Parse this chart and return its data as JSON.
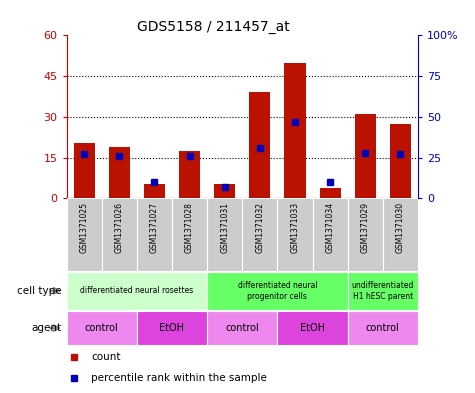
{
  "title": "GDS5158 / 211457_at",
  "samples": [
    "GSM1371025",
    "GSM1371026",
    "GSM1371027",
    "GSM1371028",
    "GSM1371031",
    "GSM1371032",
    "GSM1371033",
    "GSM1371034",
    "GSM1371029",
    "GSM1371030"
  ],
  "counts": [
    20.5,
    19.0,
    5.5,
    17.5,
    5.5,
    39.0,
    50.0,
    4.0,
    31.0,
    27.5
  ],
  "percentile": [
    27,
    26,
    10,
    26,
    7,
    31,
    47,
    10,
    28,
    27
  ],
  "ylim_left": [
    0,
    60
  ],
  "ylim_right": [
    0,
    100
  ],
  "yticks_left": [
    0,
    15,
    30,
    45,
    60
  ],
  "yticks_right": [
    0,
    25,
    50,
    75,
    100
  ],
  "bar_color": "#bb1100",
  "percentile_color": "#0000bb",
  "left_axis_color": "#cc0000",
  "right_axis_color": "#0000cc",
  "tick_bg_color": "#cccccc",
  "cell_type_groups": [
    {
      "label": "differentiated neural rosettes",
      "span": [
        0,
        4
      ],
      "color": "#ccffcc"
    },
    {
      "label": "differentiated neural\nprogenitor cells",
      "span": [
        4,
        8
      ],
      "color": "#66ff66"
    },
    {
      "label": "undifferentiated\nH1 hESC parent",
      "span": [
        8,
        10
      ],
      "color": "#66ff66"
    }
  ],
  "agent_groups": [
    {
      "label": "control",
      "span": [
        0,
        2
      ],
      "color": "#ee88ee"
    },
    {
      "label": "EtOH",
      "span": [
        2,
        4
      ],
      "color": "#dd44dd"
    },
    {
      "label": "control",
      "span": [
        4,
        6
      ],
      "color": "#ee88ee"
    },
    {
      "label": "EtOH",
      "span": [
        6,
        8
      ],
      "color": "#dd44dd"
    },
    {
      "label": "control",
      "span": [
        8,
        10
      ],
      "color": "#ee88ee"
    }
  ],
  "cell_type_label": "cell type",
  "agent_label": "agent",
  "legend_count_label": "count",
  "legend_pct_label": "percentile rank within the sample"
}
